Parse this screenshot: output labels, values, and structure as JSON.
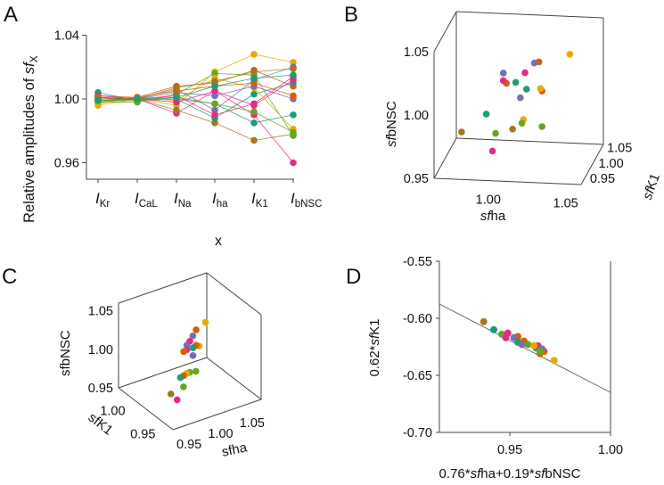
{
  "colors": {
    "teal": "#1b9e77",
    "orange": "#d95f02",
    "purple": "#7570b3",
    "pink": "#e7298a",
    "green": "#66a61e",
    "yellow": "#e6ab02",
    "brown": "#a6761d"
  },
  "chart_data": [
    {
      "panel": "A",
      "type": "line",
      "ylabel": {
        "text": "Relative amplitudes of ",
        "sf": "sf",
        "sub": "X"
      },
      "xlabel": "x",
      "categories": [
        {
          "main": "I",
          "sub": "Kr"
        },
        {
          "main": "I",
          "sub": "CaL"
        },
        {
          "main": "I",
          "sub": "Na"
        },
        {
          "main": "I",
          "sub": "ha"
        },
        {
          "main": "I",
          "sub": "K1"
        },
        {
          "main": "I",
          "sub": "bNSC"
        }
      ],
      "ylim": [
        0.95,
        1.04
      ],
      "yticks": [
        "1.04",
        "1.00",
        "0.96"
      ],
      "ytick_values": [
        1.04,
        1.0,
        0.96
      ],
      "series": [
        {
          "color": "teal",
          "values": [
            1.004,
            0.999,
            1.0,
            0.997,
            0.985,
            0.99
          ]
        },
        {
          "color": "yellow",
          "values": [
            0.996,
            1.0,
            0.996,
            1.017,
            1.028,
            1.023
          ]
        },
        {
          "color": "pink",
          "values": [
            1.001,
            1.0,
            0.991,
            1.005,
            0.99,
            0.96
          ]
        },
        {
          "color": "brown",
          "values": [
            0.998,
            1.0,
            0.993,
            0.985,
            0.974,
            0.978
          ]
        },
        {
          "color": "purple",
          "values": [
            1.0,
            1.0,
            1.006,
            0.993,
            1.012,
            1.02
          ]
        },
        {
          "color": "orange",
          "values": [
            1.002,
            1.001,
            1.008,
            1.01,
            1.018,
            1.008
          ]
        },
        {
          "color": "green",
          "values": [
            0.998,
            0.998,
            1.003,
            1.016,
            1.015,
            0.977
          ]
        },
        {
          "color": "teal",
          "values": [
            1.0,
            1.0,
            1.0,
            0.988,
            1.003,
            1.01
          ]
        },
        {
          "color": "pink",
          "values": [
            0.999,
            1.0,
            1.002,
            0.99,
            0.997,
            1.014
          ]
        },
        {
          "color": "yellow",
          "values": [
            0.997,
            1.001,
            0.999,
            1.013,
            1.007,
            0.981
          ]
        },
        {
          "color": "purple",
          "values": [
            1.001,
            1.0,
            1.004,
            1.002,
            1.008,
            1.0
          ]
        },
        {
          "color": "orange",
          "values": [
            1.0,
            1.001,
            1.005,
            1.008,
            1.01,
            1.002
          ]
        },
        {
          "color": "green",
          "values": [
            0.999,
            0.999,
            1.001,
            0.997,
            0.992,
            0.979
          ]
        },
        {
          "color": "pink",
          "values": [
            1.002,
            1.0,
            0.998,
            1.005,
            0.996,
            1.012
          ]
        },
        {
          "color": "brown",
          "values": [
            1.001,
            1.0,
            1.007,
            1.011,
            1.017,
            1.019
          ]
        },
        {
          "color": "teal",
          "values": [
            0.999,
            1.0,
            1.001,
            1.008,
            1.013,
            1.015
          ]
        }
      ]
    },
    {
      "panel": "B",
      "type": "scatter3d",
      "xlabel": {
        "sf": "sf",
        "text": "ha"
      },
      "ylabel": {
        "sf": "sf",
        "text": "K1"
      },
      "zlabel": {
        "sf": "sf",
        "text": "bNSC"
      },
      "xlim": [
        0.965,
        1.06
      ],
      "ylim": [
        0.93,
        1.06
      ],
      "zlim": [
        0.95,
        1.05
      ],
      "xticks": [
        "1.00",
        "1.05"
      ],
      "xtick_values": [
        1.0,
        1.05
      ],
      "yticks": [
        "0.95",
        "1.00",
        "1.05"
      ],
      "ytick_values": [
        0.95,
        1.0,
        1.05
      ],
      "zticks": [
        "0.95",
        "1.00",
        "1.05"
      ],
      "ztick_values": [
        0.95,
        1.0,
        1.05
      ],
      "points": [
        {
          "color": "yellow",
          "x": 1.045,
          "y": 1.0,
          "z": 1.035
        },
        {
          "color": "orange",
          "x": 1.025,
          "y": 1.0,
          "z": 1.028
        },
        {
          "color": "purple",
          "x": 1.022,
          "y": 1.0,
          "z": 1.027
        },
        {
          "color": "purple",
          "x": 1.002,
          "y": 1.0,
          "z": 1.018
        },
        {
          "color": "pink",
          "x": 1.016,
          "y": 1.0,
          "z": 1.019
        },
        {
          "color": "orange",
          "x": 1.004,
          "y": 1.0,
          "z": 1.01
        },
        {
          "color": "pink",
          "x": 1.002,
          "y": 1.0,
          "z": 1.012
        },
        {
          "color": "teal",
          "x": 1.01,
          "y": 1.0,
          "z": 1.011
        },
        {
          "color": "teal",
          "x": 1.017,
          "y": 1.0,
          "z": 1.006
        },
        {
          "color": "orange",
          "x": 1.027,
          "y": 1.0,
          "z": 1.005
        },
        {
          "color": "yellow",
          "x": 1.026,
          "y": 1.0,
          "z": 1.007
        },
        {
          "color": "purple",
          "x": 1.013,
          "y": 1.0,
          "z": 0.999
        },
        {
          "color": "teal",
          "x": 0.991,
          "y": 1.0,
          "z": 0.985
        },
        {
          "color": "yellow",
          "x": 1.015,
          "y": 1.0,
          "z": 0.982
        },
        {
          "color": "green",
          "x": 1.014,
          "y": 1.0,
          "z": 0.979
        },
        {
          "color": "green",
          "x": 1.027,
          "y": 1.0,
          "z": 0.977
        },
        {
          "color": "brown",
          "x": 1.008,
          "y": 1.0,
          "z": 0.974
        },
        {
          "color": "green",
          "x": 0.997,
          "y": 1.0,
          "z": 0.97
        },
        {
          "color": "brown",
          "x": 0.975,
          "y": 1.0,
          "z": 0.97
        },
        {
          "color": "pink",
          "x": 0.995,
          "y": 1.0,
          "z": 0.956
        }
      ]
    },
    {
      "panel": "C",
      "type": "scatter3d",
      "xlabel": {
        "text": "sfha"
      },
      "ylabel": {
        "text": "sfK1"
      },
      "zlabel": {
        "text": "sfbNSC"
      },
      "xlim": [
        0.93,
        1.07
      ],
      "ylim": [
        0.93,
        1.02
      ],
      "zlim": [
        0.95,
        1.06
      ],
      "xticks": [
        "0.95",
        "1.00",
        "1.05"
      ],
      "xtick_values": [
        0.95,
        1.0,
        1.05
      ],
      "yticks": [
        "0.95",
        "1.00"
      ],
      "ytick_values": [
        0.95,
        1.0
      ],
      "zticks": [
        "0.95",
        "1.00",
        "1.05"
      ],
      "ztick_values": [
        0.95,
        1.0,
        1.05
      ],
      "points": [
        {
          "color": "yellow",
          "x": 1.02,
          "y": 0.97,
          "z": 1.04
        },
        {
          "color": "orange",
          "x": 1.01,
          "y": 0.975,
          "z": 1.03
        },
        {
          "color": "purple",
          "x": 1.0,
          "y": 0.97,
          "z": 1.028
        },
        {
          "color": "pink",
          "x": 1.0,
          "y": 0.975,
          "z": 1.018
        },
        {
          "color": "purple",
          "x": 1.0,
          "y": 0.98,
          "z": 1.01
        },
        {
          "color": "yellow",
          "x": 1.01,
          "y": 0.97,
          "z": 1.012
        },
        {
          "color": "orange",
          "x": 1.01,
          "y": 0.975,
          "z": 1.01
        },
        {
          "color": "teal",
          "x": 1.005,
          "y": 0.975,
          "z": 1.008
        },
        {
          "color": "pink",
          "x": 1.0,
          "y": 0.98,
          "z": 1.004
        },
        {
          "color": "orange",
          "x": 0.995,
          "y": 0.98,
          "z": 1.003
        },
        {
          "color": "purple",
          "x": 1.005,
          "y": 0.975,
          "z": 0.998
        },
        {
          "color": "green",
          "x": 1.0,
          "y": 0.965,
          "z": 0.985
        },
        {
          "color": "green",
          "x": 0.995,
          "y": 0.97,
          "z": 0.982
        },
        {
          "color": "yellow",
          "x": 0.99,
          "y": 0.97,
          "z": 0.982
        },
        {
          "color": "orange",
          "x": 0.99,
          "y": 0.975,
          "z": 0.976
        },
        {
          "color": "teal",
          "x": 0.985,
          "y": 0.975,
          "z": 0.975
        },
        {
          "color": "green",
          "x": 0.985,
          "y": 0.97,
          "z": 0.966
        },
        {
          "color": "brown",
          "x": 0.97,
          "y": 0.975,
          "z": 0.958
        },
        {
          "color": "pink",
          "x": 0.975,
          "y": 0.97,
          "z": 0.952
        }
      ]
    },
    {
      "panel": "D",
      "type": "scatter",
      "xlabel": [
        {
          "t": "0.76*",
          "i": false
        },
        {
          "t": "sf",
          "i": true
        },
        {
          "t": "ha+0.19*",
          "i": false
        },
        {
          "t": "sf",
          "i": true
        },
        {
          "t": "bNSC",
          "i": false
        }
      ],
      "ylabel": [
        {
          "t": "0.62*",
          "i": false
        },
        {
          "t": "sf",
          "i": true
        },
        {
          "t": "K1",
          "i": false
        }
      ],
      "xlim": [
        0.915,
        1.0
      ],
      "ylim": [
        -0.7,
        -0.55
      ],
      "xticks": [
        "0.95",
        "1.00"
      ],
      "xtick_values": [
        0.95,
        1.0
      ],
      "yticks": [
        "-0.55",
        "-0.60",
        "-0.65",
        "-0.70"
      ],
      "ytick_values": [
        -0.55,
        -0.6,
        -0.65,
        -0.7
      ],
      "fit_line": {
        "x": [
          0.915,
          1.0
        ],
        "y": [
          -0.5875,
          -0.665
        ]
      },
      "points": [
        {
          "color": "brown",
          "x": 0.937,
          "y": -0.603
        },
        {
          "color": "teal",
          "x": 0.942,
          "y": -0.61
        },
        {
          "color": "green",
          "x": 0.946,
          "y": -0.614
        },
        {
          "color": "pink",
          "x": 0.949,
          "y": -0.613
        },
        {
          "color": "pink",
          "x": 0.948,
          "y": -0.617
        },
        {
          "color": "orange",
          "x": 0.954,
          "y": -0.616
        },
        {
          "color": "purple",
          "x": 0.952,
          "y": -0.617
        },
        {
          "color": "teal",
          "x": 0.954,
          "y": -0.621
        },
        {
          "color": "orange",
          "x": 0.957,
          "y": -0.62
        },
        {
          "color": "green",
          "x": 0.959,
          "y": -0.623
        },
        {
          "color": "purple",
          "x": 0.956,
          "y": -0.623
        },
        {
          "color": "teal",
          "x": 0.963,
          "y": -0.626
        },
        {
          "color": "pink",
          "x": 0.964,
          "y": -0.624
        },
        {
          "color": "yellow",
          "x": 0.962,
          "y": -0.624
        },
        {
          "color": "orange",
          "x": 0.965,
          "y": -0.631
        },
        {
          "color": "orange",
          "x": 0.967,
          "y": -0.629
        },
        {
          "color": "purple",
          "x": 0.966,
          "y": -0.627
        },
        {
          "color": "green",
          "x": 0.965,
          "y": -0.629
        },
        {
          "color": "yellow",
          "x": 0.972,
          "y": -0.637
        }
      ]
    }
  ]
}
